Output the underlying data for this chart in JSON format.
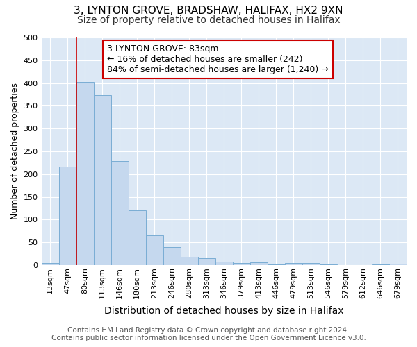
{
  "title": "3, LYNTON GROVE, BRADSHAW, HALIFAX, HX2 9XN",
  "subtitle": "Size of property relative to detached houses in Halifax",
  "xlabel": "Distribution of detached houses by size in Halifax",
  "ylabel": "Number of detached properties",
  "footer": "Contains HM Land Registry data © Crown copyright and database right 2024.\nContains public sector information licensed under the Open Government Licence v3.0.",
  "bar_labels": [
    "13sqm",
    "47sqm",
    "80sqm",
    "113sqm",
    "146sqm",
    "180sqm",
    "213sqm",
    "246sqm",
    "280sqm",
    "313sqm",
    "346sqm",
    "379sqm",
    "413sqm",
    "446sqm",
    "479sqm",
    "513sqm",
    "546sqm",
    "579sqm",
    "612sqm",
    "646sqm",
    "679sqm"
  ],
  "bar_values": [
    4,
    216,
    403,
    374,
    229,
    120,
    65,
    39,
    19,
    15,
    7,
    5,
    6,
    2,
    5,
    5,
    2,
    0,
    0,
    2,
    3
  ],
  "bar_color": "#c5d8ee",
  "bar_edge_color": "#7aadd4",
  "annotation_text": "3 LYNTON GROVE: 83sqm\n← 16% of detached houses are smaller (242)\n84% of semi-detached houses are larger (1,240) →",
  "vline_x": 2.0,
  "vline_color": "#cc0000",
  "annotation_box_color": "#cc0000",
  "ylim": [
    0,
    500
  ],
  "yticks": [
    0,
    50,
    100,
    150,
    200,
    250,
    300,
    350,
    400,
    450,
    500
  ],
  "bg_color": "#dce8f5",
  "title_fontsize": 11,
  "subtitle_fontsize": 10,
  "axis_label_fontsize": 10,
  "tick_fontsize": 8,
  "annotation_fontsize": 9,
  "footer_fontsize": 7.5,
  "ylabel_fontsize": 9
}
